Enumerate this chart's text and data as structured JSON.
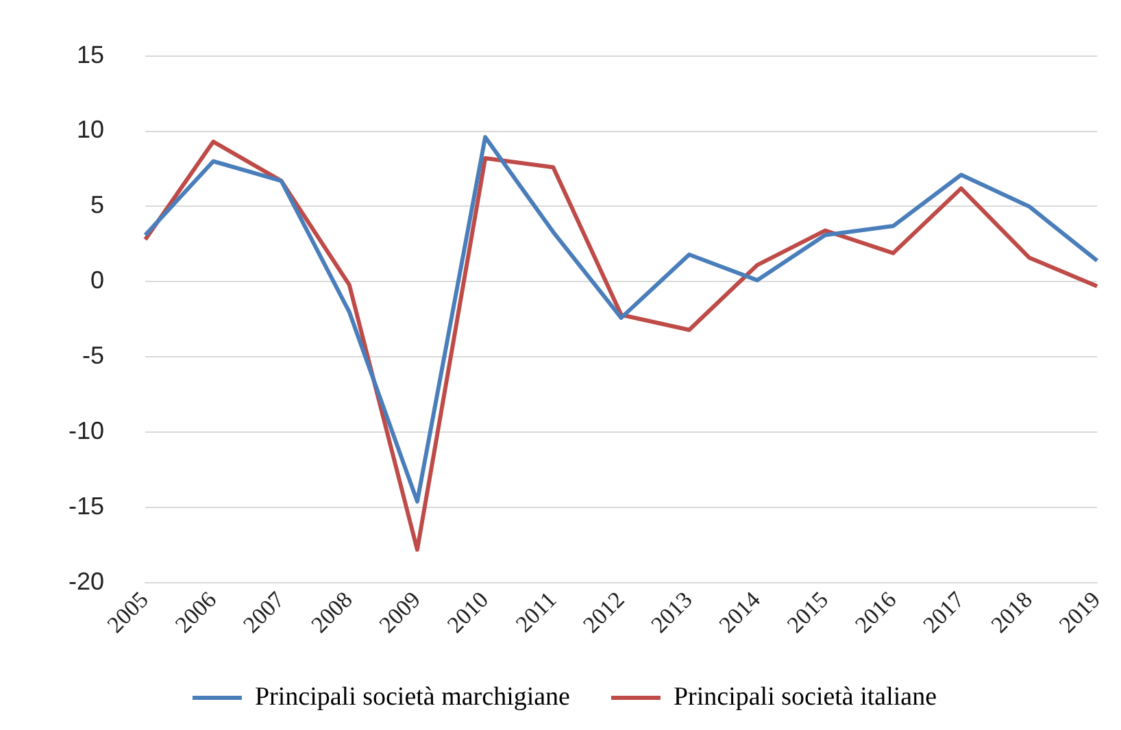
{
  "chart_data": {
    "type": "line",
    "categories": [
      "2005",
      "2006",
      "2007",
      "2008",
      "2009",
      "2010",
      "2011",
      "2012",
      "2013",
      "2014",
      "2015",
      "2016",
      "2017",
      "2018",
      "2019"
    ],
    "series": [
      {
        "name": "Principali società marchigiane",
        "color": "#4a7ebb",
        "values": [
          3.1,
          8.0,
          6.7,
          -2.0,
          -14.6,
          9.6,
          3.3,
          -2.4,
          1.8,
          0.1,
          3.1,
          3.7,
          7.1,
          5.0,
          1.4
        ]
      },
      {
        "name": "Principali società italiane",
        "color": "#be4b48",
        "values": [
          2.8,
          9.3,
          6.7,
          -0.2,
          -17.8,
          8.2,
          7.6,
          -2.2,
          -3.2,
          1.1,
          3.4,
          1.9,
          6.2,
          1.6,
          -0.3
        ]
      }
    ],
    "ylim": [
      -20,
      15
    ],
    "yticks": [
      -20,
      -15,
      -10,
      -5,
      0,
      5,
      10,
      15
    ],
    "grid": "y",
    "legend": "bottom",
    "marker": "none",
    "line_style": "solid"
  }
}
